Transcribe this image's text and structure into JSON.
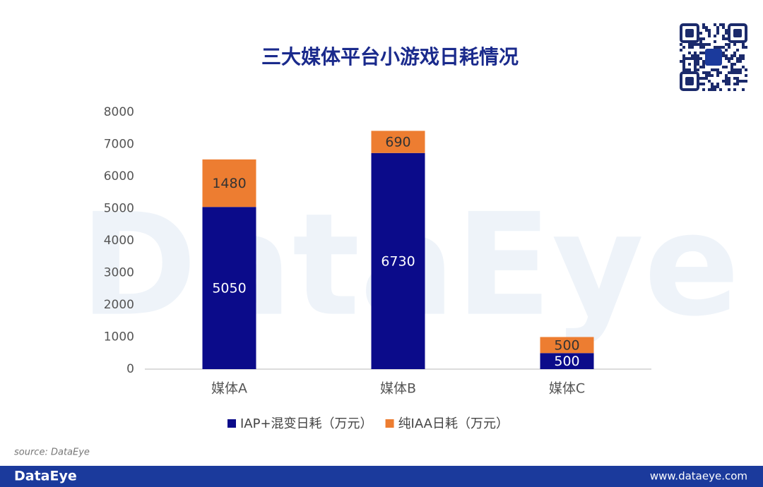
{
  "chart_data": {
    "type": "stacked_bar",
    "title": "三大媒体平台小游戏日耗情况",
    "categories": [
      "媒体A",
      "媒体B",
      "媒体C"
    ],
    "series": [
      {
        "name": "IAP+混变日耗（万元）",
        "color": "#0b0b8a",
        "values": [
          5050,
          6730,
          500
        ]
      },
      {
        "name": "纯IAA日耗（万元）",
        "color": "#ed7d31",
        "values": [
          1480,
          690,
          500
        ]
      }
    ],
    "ylim": [
      0,
      8000
    ],
    "yticks": [
      0,
      1000,
      2000,
      3000,
      4000,
      5000,
      6000,
      7000,
      8000
    ],
    "grid": false,
    "legend": "bottom"
  },
  "watermark": "DataEye",
  "source": "source: DataEye",
  "footer": {
    "brand": "DataEye",
    "url": "www.dataeye.com"
  }
}
